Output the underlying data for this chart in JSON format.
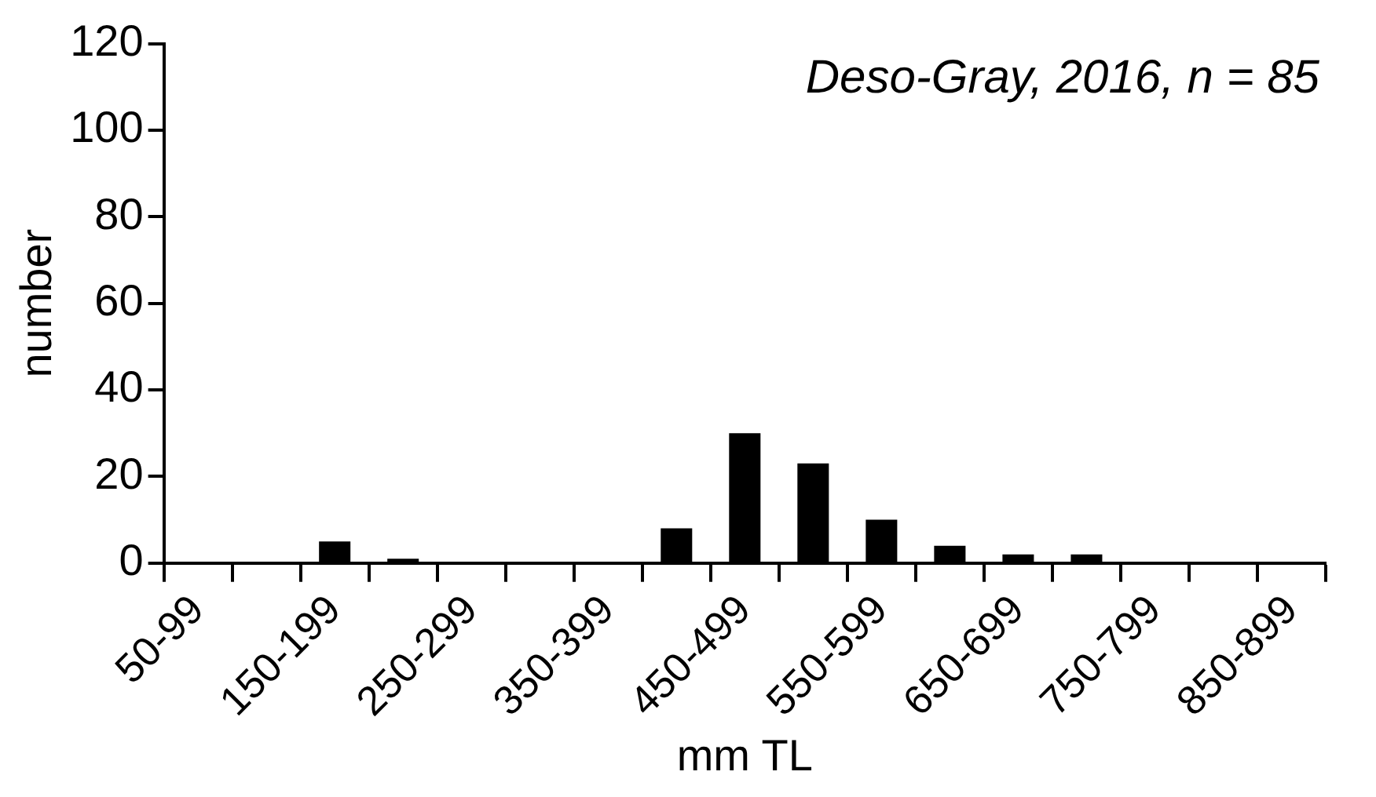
{
  "chart_data": {
    "type": "bar",
    "xlabel": "mm TL",
    "ylabel": "number",
    "annotations": [
      "Deso-Gray, 2016, n = 85"
    ],
    "categories": [
      "50-99",
      null,
      "150-199",
      null,
      "250-299",
      null,
      "350-399",
      null,
      "450-499",
      null,
      "550-599",
      null,
      "650-699",
      null,
      "750-799",
      null,
      "850-899"
    ],
    "values": [
      0,
      0,
      5,
      1,
      0,
      0,
      0,
      8,
      30,
      23,
      10,
      4,
      2,
      2,
      0,
      0,
      0
    ],
    "color": "#000000",
    "ylim": [
      0,
      120
    ],
    "yticks": [
      0,
      20,
      40,
      60,
      80,
      100,
      120
    ],
    "grid": false,
    "legend": false
  }
}
